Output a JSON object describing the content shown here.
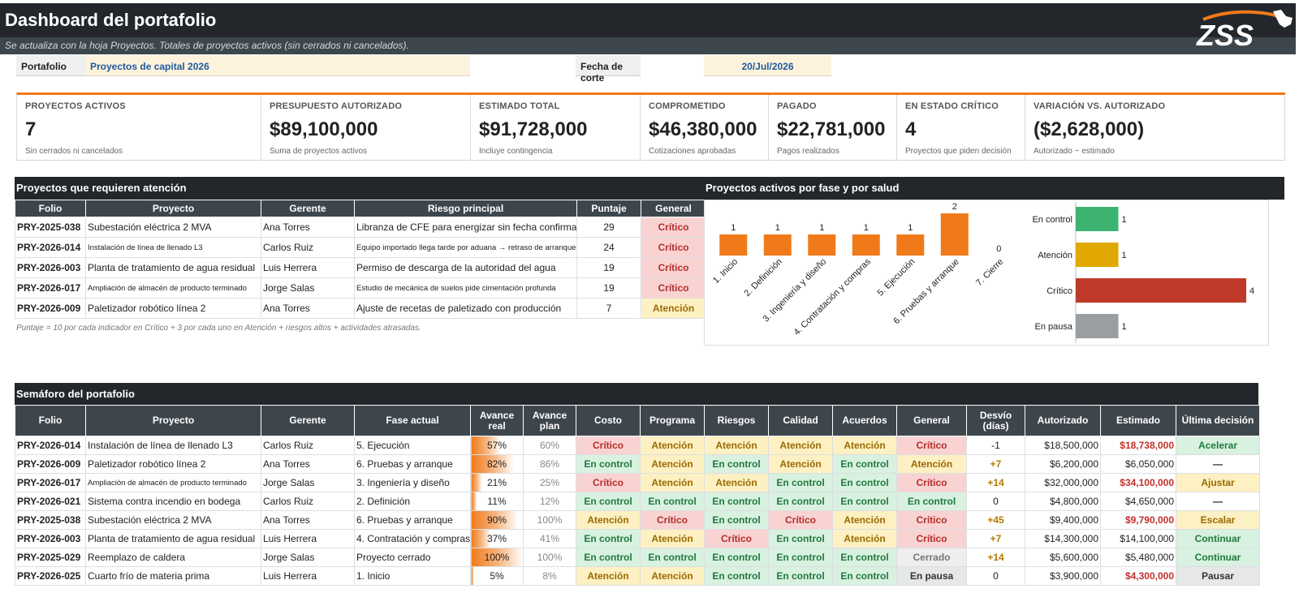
{
  "header": {
    "title": "Dashboard del portafolio",
    "subtitle": "Se actualiza con la hoja Proyectos. Totales de proyectos activos (sin cerrados ni cancelados).",
    "logo_text": "ZSS"
  },
  "filters": {
    "portfolio_label": "Portafolio",
    "portfolio_value": "Proyectos de capital 2026",
    "date_label": "Fecha de corte",
    "date_value": "20/Jul/2026"
  },
  "colors": {
    "accent": "#f07a1a",
    "header": "#23272b",
    "critico": "#c0392b",
    "atencion": "#e0a800",
    "en_control": "#3cb371",
    "en_pausa": "#9a9ea3"
  },
  "kpis": [
    {
      "label": "PROYECTOS ACTIVOS",
      "value": "7",
      "sub": "Sin cerrados ni cancelados"
    },
    {
      "label": "PRESUPUESTO AUTORIZADO",
      "value": "$89,100,000",
      "sub": "Suma de proyectos activos"
    },
    {
      "label": "ESTIMADO TOTAL",
      "value": "$91,728,000",
      "sub": "Incluye contingencia"
    },
    {
      "label": "COMPROMETIDO",
      "value": "$46,380,000",
      "sub": "Cotizaciones aprobadas"
    },
    {
      "label": "PAGADO",
      "value": "$22,781,000",
      "sub": "Pagos realizados"
    },
    {
      "label": "EN ESTADO CRÍTICO",
      "value": "4",
      "sub": "Proyectos que piden decisión"
    },
    {
      "label": "VARIACIÓN VS. AUTORIZADO",
      "value": "($2,628,000)",
      "sub": "Autorizado − estimado"
    }
  ],
  "attention": {
    "title": "Proyectos que requieren atención",
    "columns": [
      "Folio",
      "Proyecto",
      "Gerente",
      "Riesgo principal",
      "Puntaje",
      "General"
    ],
    "rows": [
      {
        "folio": "PRY-2025-038",
        "proyecto": "Subestación eléctrica 2 MVA",
        "gerente": "Ana Torres",
        "riesgo": "Libranza de CFE para energizar sin fecha confirmada",
        "puntaje": "29",
        "general": "Crítico",
        "small": false
      },
      {
        "folio": "PRY-2026-014",
        "proyecto": "Instalación de línea de llenado L3",
        "gerente": "Carlos Ruiz",
        "riesgo": "Equipo importado llega tarde por aduana → retraso de arranque",
        "puntaje": "24",
        "general": "Crítico",
        "small": true
      },
      {
        "folio": "PRY-2026-003",
        "proyecto": "Planta de tratamiento de agua residual",
        "gerente": "Luis Herrera",
        "riesgo": "Permiso de descarga de la autoridad del agua",
        "puntaje": "19",
        "general": "Crítico",
        "small": false
      },
      {
        "folio": "PRY-2026-017",
        "proyecto": "Ampliación de almacén de producto terminado",
        "gerente": "Jorge Salas",
        "riesgo": "Estudio de mecánica de suelos pide cimentación profunda",
        "puntaje": "19",
        "general": "Crítico",
        "small": true
      },
      {
        "folio": "PRY-2026-009",
        "proyecto": "Paletizador robótico línea 2",
        "gerente": "Ana Torres",
        "riesgo": "Ajuste de recetas de paletizado con producción",
        "puntaje": "7",
        "general": "Atención",
        "small": false
      }
    ],
    "note": "Puntaje = 10 por cada indicador en Crítico + 3 por cada uno en Atención + riesgos altos + actividades atrasadas."
  },
  "phase_title": "Proyectos activos por fase y por salud",
  "chart_data": [
    {
      "type": "bar",
      "orientation": "vertical",
      "categories": [
        "1. Inicio",
        "2. Definición",
        "3. Ingeniería y diseño",
        "4. Contratación y compras",
        "5. Ejecución",
        "6. Pruebas y arranque",
        "7. Cierre"
      ],
      "values": [
        1,
        1,
        1,
        1,
        1,
        2,
        0
      ],
      "color": "#f07a1a",
      "data_labels": true,
      "grid": false
    },
    {
      "type": "bar",
      "orientation": "horizontal",
      "categories": [
        "En control",
        "Atención",
        "Crítico",
        "En pausa"
      ],
      "values": [
        1,
        1,
        4,
        1
      ],
      "colors": [
        "#3cb371",
        "#e0a800",
        "#c0392b",
        "#9a9ea3"
      ],
      "data_labels": true,
      "grid": false
    }
  ],
  "semaforo": {
    "title": "Semáforo del portafolio",
    "columns": [
      "Folio",
      "Proyecto",
      "Gerente",
      "Fase actual",
      "Avance real",
      "Avance plan",
      "Costo",
      "Programa",
      "Riesgos",
      "Calidad",
      "Acuerdos",
      "General",
      "Desvío (días)",
      "Autorizado",
      "Estimado",
      "Última decisión"
    ],
    "rows": [
      {
        "folio": "PRY-2026-014",
        "proyecto": "Instalación de línea de llenado L3",
        "gerente": "Carlos Ruiz",
        "fase": "5. Ejecución",
        "real": "57%",
        "real_pct": 57,
        "plan": "60%",
        "costo": "Crítico",
        "programa": "Atención",
        "riesgos": "Atención",
        "calidad": "Atención",
        "acuerdos": "Atención",
        "general": "Crítico",
        "desvio": "-1",
        "autorizado": "$18,500,000",
        "estimado": "$18,738,000",
        "est_over": true,
        "decision": "Acelerar",
        "dec_class": "dec-acel",
        "small": false
      },
      {
        "folio": "PRY-2026-009",
        "proyecto": "Paletizador robótico línea 2",
        "gerente": "Ana Torres",
        "fase": "6. Pruebas y arranque",
        "real": "82%",
        "real_pct": 82,
        "plan": "86%",
        "costo": "En control",
        "programa": "Atención",
        "riesgos": "En control",
        "calidad": "Atención",
        "acuerdos": "En control",
        "general": "Atención",
        "desvio": "+7",
        "autorizado": "$6,200,000",
        "estimado": "$6,050,000",
        "est_over": false,
        "decision": "—",
        "dec_class": "dec-none",
        "small": false
      },
      {
        "folio": "PRY-2026-017",
        "proyecto": "Ampliación de almacén de producto terminado",
        "gerente": "Jorge Salas",
        "fase": "3. Ingeniería y diseño",
        "real": "21%",
        "real_pct": 21,
        "plan": "25%",
        "costo": "Crítico",
        "programa": "Atención",
        "riesgos": "Atención",
        "calidad": "En control",
        "acuerdos": "En control",
        "general": "Crítico",
        "desvio": "+14",
        "autorizado": "$32,000,000",
        "estimado": "$34,100,000",
        "est_over": true,
        "decision": "Ajustar",
        "dec_class": "dec-ajus",
        "small": true
      },
      {
        "folio": "PRY-2026-021",
        "proyecto": "Sistema contra incendio en bodega",
        "gerente": "Carlos Ruiz",
        "fase": "2. Definición",
        "real": "11%",
        "real_pct": 11,
        "plan": "12%",
        "costo": "En control",
        "programa": "En control",
        "riesgos": "En control",
        "calidad": "En control",
        "acuerdos": "En control",
        "general": "En control",
        "desvio": "0",
        "autorizado": "$4,800,000",
        "estimado": "$4,650,000",
        "est_over": false,
        "decision": "—",
        "dec_class": "dec-none",
        "small": false
      },
      {
        "folio": "PRY-2025-038",
        "proyecto": "Subestación eléctrica 2 MVA",
        "gerente": "Ana Torres",
        "fase": "6. Pruebas y arranque",
        "real": "90%",
        "real_pct": 90,
        "plan": "100%",
        "costo": "Atención",
        "programa": "Crítico",
        "riesgos": "En control",
        "calidad": "Crítico",
        "acuerdos": "Atención",
        "general": "Crítico",
        "desvio": "+45",
        "autorizado": "$9,400,000",
        "estimado": "$9,790,000",
        "est_over": true,
        "decision": "Escalar",
        "dec_class": "dec-esc",
        "small": false
      },
      {
        "folio": "PRY-2026-003",
        "proyecto": "Planta de tratamiento de agua residual",
        "gerente": "Luis Herrera",
        "fase": "4. Contratación y compras",
        "real": "37%",
        "real_pct": 37,
        "plan": "41%",
        "costo": "En control",
        "programa": "Atención",
        "riesgos": "Crítico",
        "calidad": "En control",
        "acuerdos": "Atención",
        "general": "Crítico",
        "desvio": "+7",
        "autorizado": "$14,300,000",
        "estimado": "$14,100,000",
        "est_over": false,
        "decision": "Continuar",
        "dec_class": "dec-cont",
        "small": false
      },
      {
        "folio": "PRY-2025-029",
        "proyecto": "Reemplazo de caldera",
        "gerente": "Jorge Salas",
        "fase": "Proyecto cerrado",
        "real": "100%",
        "real_pct": 100,
        "plan": "100%",
        "costo": "En control",
        "programa": "En control",
        "riesgos": "En control",
        "calidad": "En control",
        "acuerdos": "En control",
        "general": "Cerrado",
        "desvio": "+14",
        "autorizado": "$5,600,000",
        "estimado": "$5,480,000",
        "est_over": false,
        "decision": "Continuar",
        "dec_class": "dec-cont",
        "small": false
      },
      {
        "folio": "PRY-2026-025",
        "proyecto": "Cuarto frío de materia prima",
        "gerente": "Luis Herrera",
        "fase": "1. Inicio",
        "real": "5%",
        "real_pct": 5,
        "plan": "8%",
        "costo": "Atención",
        "programa": "Atención",
        "riesgos": "En control",
        "calidad": "En control",
        "acuerdos": "En control",
        "general": "En pausa",
        "desvio": "0",
        "autorizado": "$3,900,000",
        "estimado": "$4,300,000",
        "est_over": true,
        "decision": "Pausar",
        "dec_class": "dec-paus",
        "small": false
      }
    ]
  }
}
